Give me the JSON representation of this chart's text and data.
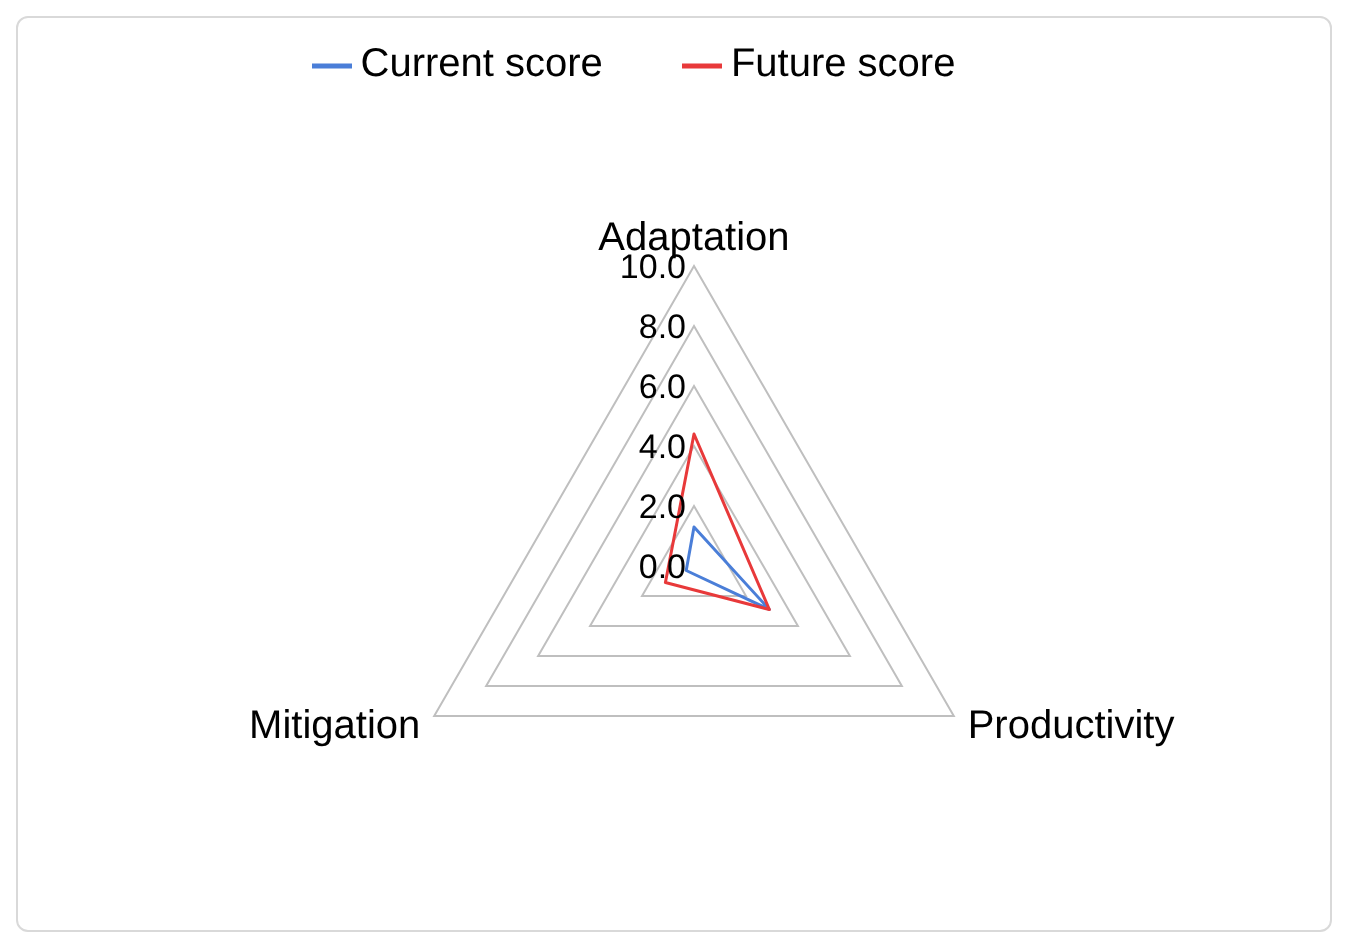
{
  "chart_data": {
    "type": "radar",
    "categories": [
      "Adaptation",
      "Productivity",
      "Mitigation"
    ],
    "series": [
      {
        "name": "Current score",
        "color": "#4a7ed8",
        "values": [
          1.3,
          2.9,
          0.3
        ]
      },
      {
        "name": "Future score",
        "color": "#e8393a",
        "values": [
          4.4,
          2.9,
          1.1
        ]
      }
    ],
    "ylim": [
      0,
      10
    ],
    "yticks": [
      {
        "value": 0,
        "label": "0.0"
      },
      {
        "value": 2,
        "label": "2.0"
      },
      {
        "value": 4,
        "label": "4.0"
      },
      {
        "value": 6,
        "label": "6.0"
      },
      {
        "value": 8,
        "label": "8.0"
      },
      {
        "value": 10,
        "label": "10.0"
      }
    ],
    "grid": true,
    "legend": "top",
    "marker": "none"
  }
}
